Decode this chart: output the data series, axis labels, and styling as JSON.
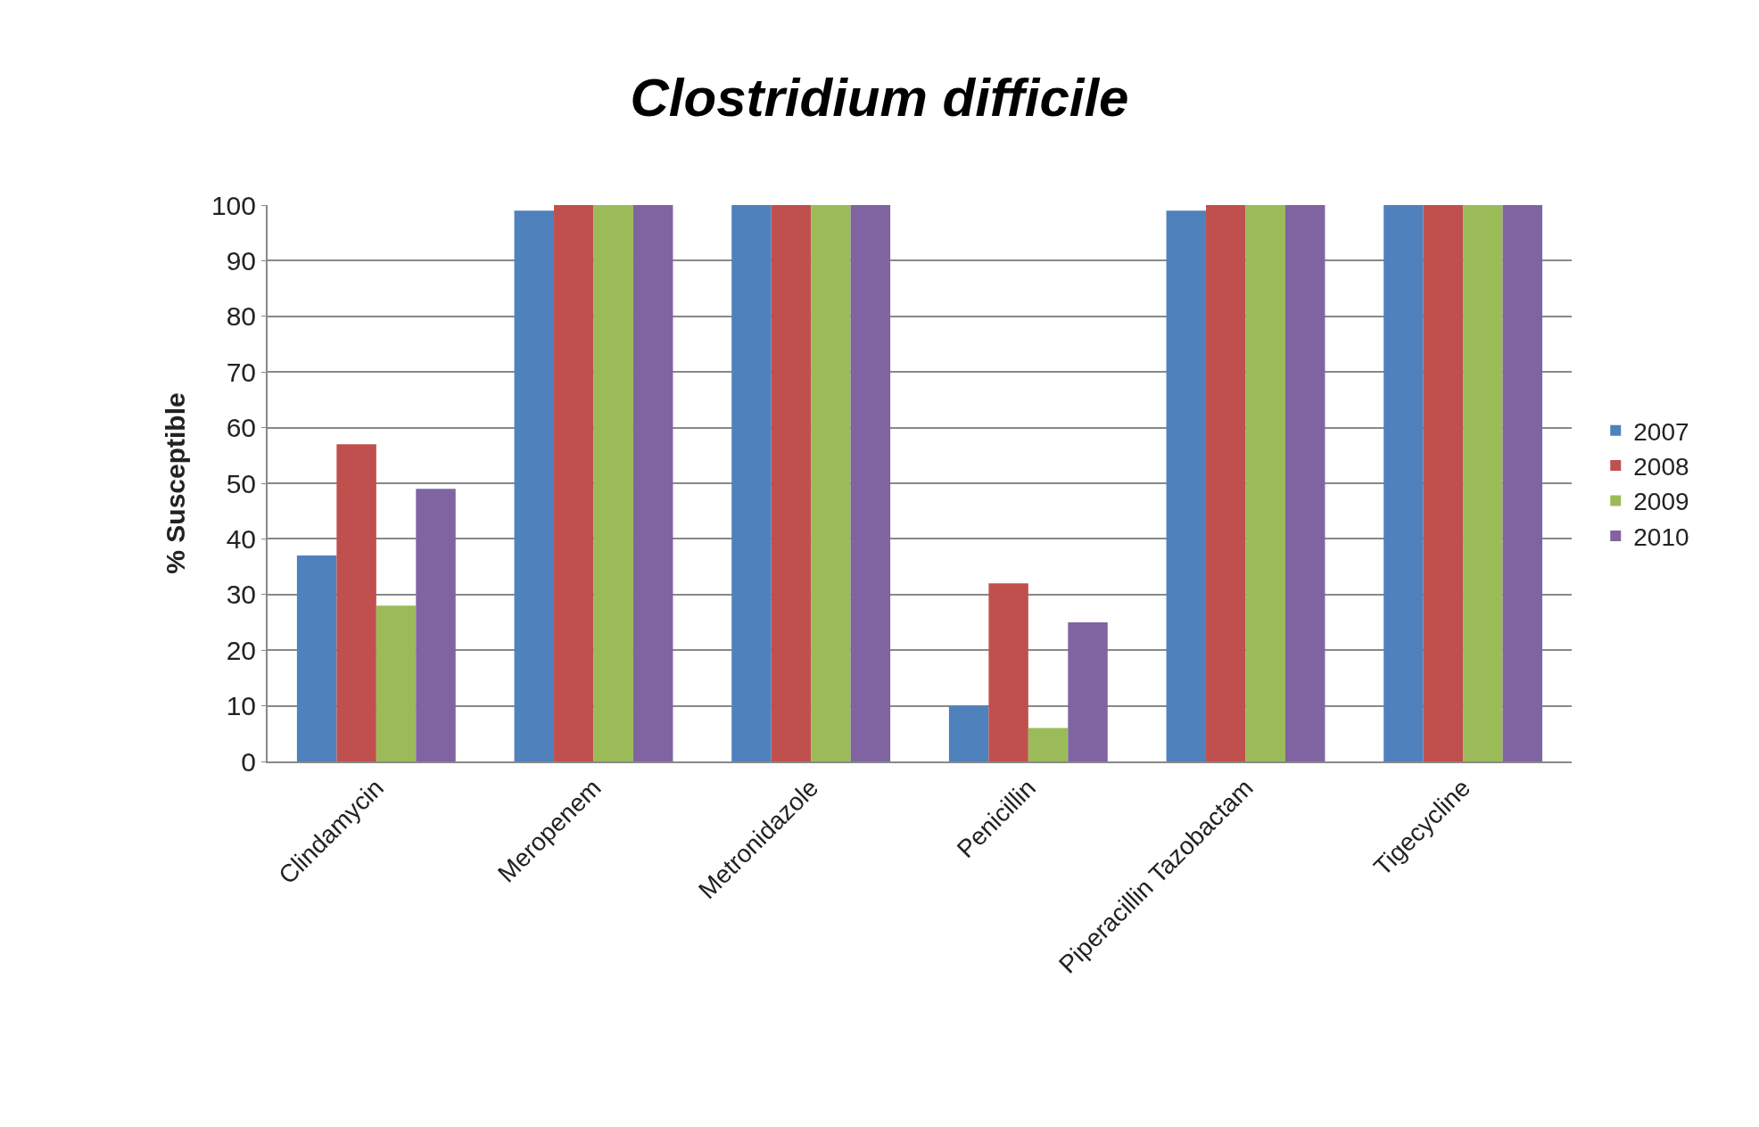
{
  "chart_data": {
    "type": "bar",
    "title": "Clostridium difficile",
    "ylabel": "% Susceptible",
    "categories": [
      "Clindamycin",
      "Meropenem",
      "Metronidazole",
      "Penicillin",
      "Piperacillin Tazobactam",
      "Tigecycline"
    ],
    "series": [
      {
        "name": "2007",
        "color": "#4f81bd",
        "values": [
          37,
          99,
          100,
          10,
          99,
          100
        ]
      },
      {
        "name": "2008",
        "color": "#c0504d",
        "values": [
          57,
          100,
          100,
          32,
          100,
          100
        ]
      },
      {
        "name": "2009",
        "color": "#9bbb59",
        "values": [
          28,
          100,
          100,
          6,
          100,
          100
        ]
      },
      {
        "name": "2010",
        "color": "#8064a2",
        "values": [
          49,
          100,
          100,
          25,
          100,
          100
        ]
      }
    ],
    "ylim": [
      0,
      100
    ],
    "yticks": [
      0,
      10,
      20,
      30,
      40,
      50,
      60,
      70,
      80,
      90,
      100
    ],
    "grid": "y",
    "legend": "right"
  }
}
